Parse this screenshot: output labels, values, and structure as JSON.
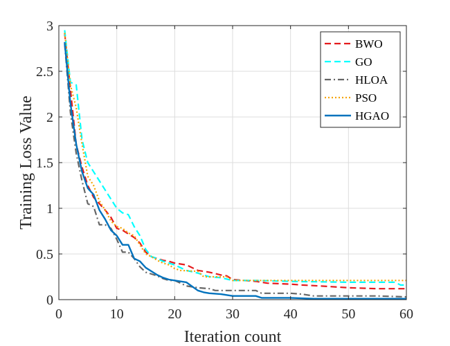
{
  "chart_data": {
    "type": "line",
    "title": "",
    "xlabel": "Iteration count",
    "ylabel": "Training Loss Value",
    "xlim": [
      0,
      60
    ],
    "ylim": [
      0,
      3
    ],
    "xticks": [
      0,
      10,
      20,
      30,
      40,
      50,
      60
    ],
    "yticks": [
      0,
      0.5,
      1,
      1.5,
      2,
      2.5,
      3
    ],
    "ytick_labels": [
      "0",
      "0.5",
      "1",
      "1.5",
      "2",
      "2.5",
      "3"
    ],
    "grid": true,
    "legend_position": "top-right",
    "series": [
      {
        "name": "BWO",
        "color": "#e41a1c",
        "dash": "dashed",
        "points": [
          [
            1,
            2.92
          ],
          [
            2,
            2.3
          ],
          [
            3,
            1.7
          ],
          [
            4,
            1.45
          ],
          [
            5,
            1.25
          ],
          [
            6,
            1.12
          ],
          [
            7,
            1.05
          ],
          [
            8,
            0.98
          ],
          [
            9,
            0.9
          ],
          [
            10,
            0.78
          ],
          [
            11,
            0.76
          ],
          [
            12,
            0.72
          ],
          [
            13,
            0.68
          ],
          [
            14,
            0.62
          ],
          [
            15,
            0.52
          ],
          [
            16,
            0.47
          ],
          [
            17,
            0.45
          ],
          [
            18,
            0.43
          ],
          [
            19,
            0.42
          ],
          [
            20,
            0.4
          ],
          [
            22,
            0.38
          ],
          [
            24,
            0.32
          ],
          [
            26,
            0.3
          ],
          [
            28,
            0.27
          ],
          [
            29,
            0.26
          ],
          [
            30,
            0.22
          ],
          [
            32,
            0.21
          ],
          [
            34,
            0.2
          ],
          [
            36,
            0.18
          ],
          [
            40,
            0.17
          ],
          [
            42,
            0.16
          ],
          [
            45,
            0.15
          ],
          [
            50,
            0.13
          ],
          [
            55,
            0.12
          ],
          [
            60,
            0.12
          ]
        ]
      },
      {
        "name": "GO",
        "color": "#00ffff",
        "dash": "dashed",
        "points": [
          [
            1,
            2.95
          ],
          [
            2,
            2.38
          ],
          [
            3,
            2.35
          ],
          [
            4,
            1.75
          ],
          [
            5,
            1.5
          ],
          [
            6,
            1.4
          ],
          [
            7,
            1.3
          ],
          [
            8,
            1.2
          ],
          [
            9,
            1.1
          ],
          [
            10,
            1.0
          ],
          [
            11,
            0.95
          ],
          [
            12,
            0.93
          ],
          [
            13,
            0.8
          ],
          [
            14,
            0.7
          ],
          [
            15,
            0.55
          ],
          [
            16,
            0.47
          ],
          [
            17,
            0.45
          ],
          [
            18,
            0.42
          ],
          [
            19,
            0.4
          ],
          [
            20,
            0.38
          ],
          [
            22,
            0.32
          ],
          [
            24,
            0.29
          ],
          [
            26,
            0.25
          ],
          [
            28,
            0.24
          ],
          [
            30,
            0.21
          ],
          [
            34,
            0.21
          ],
          [
            40,
            0.2
          ],
          [
            50,
            0.19
          ],
          [
            58,
            0.19
          ],
          [
            59,
            0.16
          ],
          [
            60,
            0.16
          ]
        ]
      },
      {
        "name": "HLOA",
        "color": "#666666",
        "dash": "dashdot",
        "points": [
          [
            1,
            2.8
          ],
          [
            2,
            2.05
          ],
          [
            3,
            1.6
          ],
          [
            4,
            1.3
          ],
          [
            5,
            1.05
          ],
          [
            6,
            1.02
          ],
          [
            7,
            0.82
          ],
          [
            8,
            0.82
          ],
          [
            9,
            0.78
          ],
          [
            10,
            0.66
          ],
          [
            11,
            0.52
          ],
          [
            12,
            0.52
          ],
          [
            13,
            0.45
          ],
          [
            14,
            0.36
          ],
          [
            15,
            0.3
          ],
          [
            16,
            0.28
          ],
          [
            17,
            0.26
          ],
          [
            18,
            0.23
          ],
          [
            19,
            0.21
          ],
          [
            20,
            0.21
          ],
          [
            21,
            0.18
          ],
          [
            22,
            0.15
          ],
          [
            23,
            0.14
          ],
          [
            24,
            0.13
          ],
          [
            26,
            0.12
          ],
          [
            27,
            0.1
          ],
          [
            30,
            0.1
          ],
          [
            34,
            0.1
          ],
          [
            35,
            0.07
          ],
          [
            40,
            0.07
          ],
          [
            42,
            0.06
          ],
          [
            44,
            0.04
          ],
          [
            50,
            0.04
          ],
          [
            55,
            0.04
          ],
          [
            60,
            0.03
          ]
        ]
      },
      {
        "name": "PSO",
        "color": "#f5a300",
        "dash": "dotted",
        "points": [
          [
            1,
            2.92
          ],
          [
            2,
            2.35
          ],
          [
            3,
            2.1
          ],
          [
            4,
            1.7
          ],
          [
            5,
            1.35
          ],
          [
            6,
            1.25
          ],
          [
            7,
            1.08
          ],
          [
            8,
            0.98
          ],
          [
            9,
            0.86
          ],
          [
            10,
            0.8
          ],
          [
            11,
            0.78
          ],
          [
            12,
            0.73
          ],
          [
            13,
            0.7
          ],
          [
            14,
            0.6
          ],
          [
            15,
            0.5
          ],
          [
            16,
            0.47
          ],
          [
            17,
            0.43
          ],
          [
            18,
            0.4
          ],
          [
            19,
            0.38
          ],
          [
            20,
            0.34
          ],
          [
            21,
            0.32
          ],
          [
            24,
            0.31
          ],
          [
            25,
            0.25
          ],
          [
            29,
            0.25
          ],
          [
            30,
            0.21
          ],
          [
            34,
            0.21
          ],
          [
            40,
            0.21
          ],
          [
            50,
            0.21
          ],
          [
            60,
            0.21
          ]
        ]
      },
      {
        "name": "HGAO",
        "color": "#0072bd",
        "dash": "solid",
        "points": [
          [
            1,
            2.82
          ],
          [
            2,
            2.15
          ],
          [
            3,
            1.7
          ],
          [
            4,
            1.4
          ],
          [
            5,
            1.22
          ],
          [
            6,
            1.15
          ],
          [
            7,
            0.98
          ],
          [
            8,
            0.88
          ],
          [
            9,
            0.76
          ],
          [
            10,
            0.7
          ],
          [
            11,
            0.6
          ],
          [
            12,
            0.6
          ],
          [
            13,
            0.45
          ],
          [
            14,
            0.42
          ],
          [
            15,
            0.35
          ],
          [
            16,
            0.31
          ],
          [
            17,
            0.27
          ],
          [
            18,
            0.24
          ],
          [
            19,
            0.22
          ],
          [
            20,
            0.21
          ],
          [
            22,
            0.19
          ],
          [
            24,
            0.1
          ],
          [
            25,
            0.08
          ],
          [
            26,
            0.07
          ],
          [
            28,
            0.06
          ],
          [
            30,
            0.04
          ],
          [
            34,
            0.04
          ],
          [
            35,
            0.02
          ],
          [
            40,
            0.02
          ],
          [
            44,
            0.01
          ],
          [
            50,
            0.01
          ],
          [
            55,
            0.01
          ],
          [
            60,
            0.01
          ]
        ]
      }
    ]
  }
}
